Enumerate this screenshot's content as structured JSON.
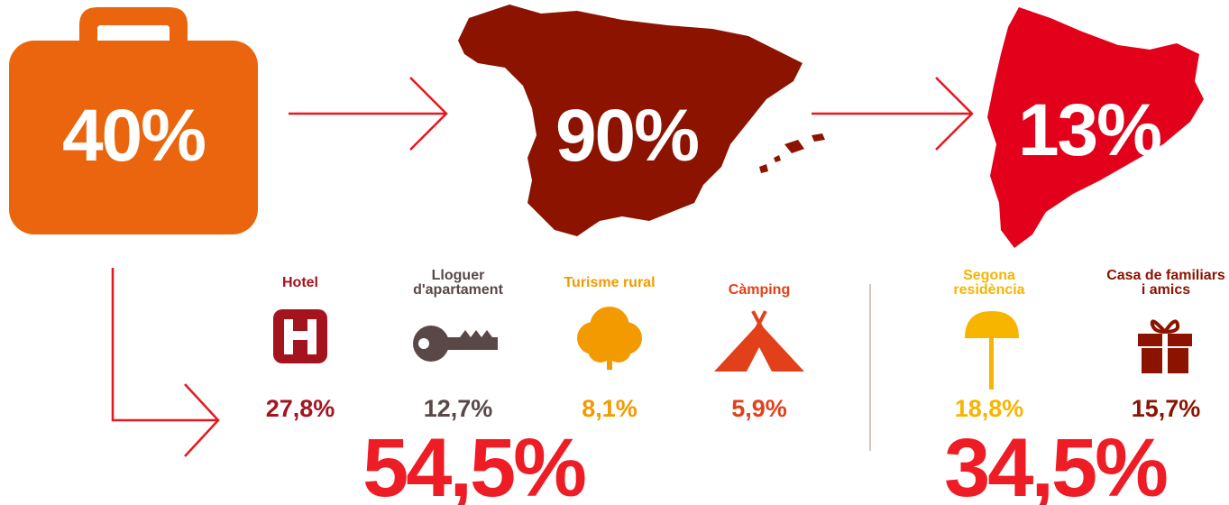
{
  "steps": [
    {
      "value": "40%"
    },
    {
      "value": "90%"
    },
    {
      "value": "13%"
    }
  ],
  "groups": [
    {
      "items": [
        {
          "label": "Hotel",
          "value": "27,8%"
        },
        {
          "label": "Lloguer d'apartament",
          "value": "12,7%"
        },
        {
          "label": "Turisme rural",
          "value": "8,1%"
        },
        {
          "label": "Càmping",
          "value": "5,9%"
        }
      ],
      "total": "54,5%"
    },
    {
      "items": [
        {
          "label": "Segona residència",
          "value": "18,8%"
        },
        {
          "label": "Casa de familiars i amics",
          "value": "15,7%"
        }
      ],
      "total": "34,5%"
    }
  ]
}
